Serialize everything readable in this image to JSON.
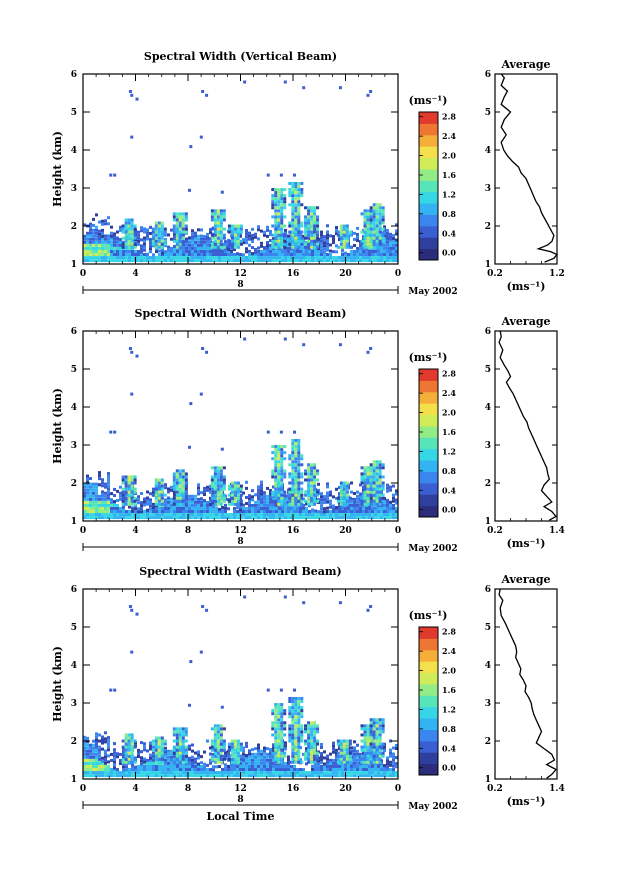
{
  "colors": {
    "scale": [
      "#2b2d7a",
      "#2e3f9e",
      "#3a5fd3",
      "#3a86ee",
      "#34b3f2",
      "#35d6e6",
      "#57e5b8",
      "#93ec86",
      "#cfec58",
      "#f3e04a",
      "#f6ae3b",
      "#ef7533",
      "#e03a2f"
    ],
    "line": "#000000"
  },
  "chart_data": [
    {
      "id": "vertical",
      "type": "heatmap",
      "title": "Spectral Width (Vertical Beam)",
      "ylabel": "Height (km)",
      "x_ticks": [
        "0",
        "4",
        "8",
        "12",
        "16",
        "20",
        "0"
      ],
      "y_ticks": [
        "1",
        "2",
        "3",
        "4",
        "5",
        "6"
      ],
      "xlim": [
        0,
        24
      ],
      "ylim": [
        1,
        6
      ],
      "date_label": "8",
      "month_label": "May 2002",
      "colorbar": {
        "unit": "(ms⁻¹)",
        "tick_labels": [
          "2.8",
          "2.4",
          "2.0",
          "1.6",
          "1.2",
          "0.8",
          "0.4",
          "0.0"
        ],
        "range": [
          0,
          3.0
        ]
      },
      "average": {
        "title": "Average",
        "xlabel": "(ms⁻¹)",
        "x_ticks": [
          "0.2",
          "1.2"
        ],
        "xlim": [
          0.2,
          1.2
        ],
        "ylim": [
          1,
          6
        ],
        "y_ticks": [
          "1",
          "2",
          "3",
          "4",
          "5",
          "6"
        ],
        "profile": [
          [
            0.3,
            6.0
          ],
          [
            0.35,
            5.9
          ],
          [
            0.3,
            5.7
          ],
          [
            0.4,
            5.55
          ],
          [
            0.35,
            5.4
          ],
          [
            0.3,
            5.2
          ],
          [
            0.45,
            5.0
          ],
          [
            0.35,
            4.8
          ],
          [
            0.3,
            4.6
          ],
          [
            0.38,
            4.4
          ],
          [
            0.3,
            4.2
          ],
          [
            0.34,
            4.0
          ],
          [
            0.4,
            3.85
          ],
          [
            0.48,
            3.7
          ],
          [
            0.58,
            3.55
          ],
          [
            0.62,
            3.4
          ],
          [
            0.7,
            3.25
          ],
          [
            0.74,
            3.1
          ],
          [
            0.78,
            2.95
          ],
          [
            0.82,
            2.8
          ],
          [
            0.86,
            2.65
          ],
          [
            0.92,
            2.5
          ],
          [
            0.95,
            2.35
          ],
          [
            1.0,
            2.2
          ],
          [
            1.05,
            2.05
          ],
          [
            1.1,
            1.9
          ],
          [
            1.15,
            1.75
          ],
          [
            1.12,
            1.6
          ],
          [
            1.05,
            1.5
          ],
          [
            0.9,
            1.4
          ],
          [
            1.1,
            1.32
          ],
          [
            1.2,
            1.25
          ],
          [
            1.15,
            1.15
          ],
          [
            1.0,
            1.05
          ]
        ]
      }
    },
    {
      "id": "northward",
      "type": "heatmap",
      "title": "Spectral Width (Northward Beam)",
      "ylabel": "Height (km)",
      "x_ticks": [
        "0",
        "4",
        "8",
        "12",
        "16",
        "20",
        "0"
      ],
      "y_ticks": [
        "1",
        "2",
        "3",
        "4",
        "5",
        "6"
      ],
      "xlim": [
        0,
        24
      ],
      "ylim": [
        1,
        6
      ],
      "date_label": "8",
      "month_label": "May 2002",
      "colorbar": {
        "unit": "(ms⁻¹)",
        "tick_labels": [
          "2.8",
          "2.4",
          "2.0",
          "1.6",
          "1.2",
          "0.8",
          "0.4",
          "0.0"
        ],
        "range": [
          0,
          3.0
        ]
      },
      "average": {
        "title": "Average",
        "xlabel": "(ms⁻¹)",
        "x_ticks": [
          "0.2",
          "1.4"
        ],
        "xlim": [
          0.2,
          1.4
        ],
        "ylim": [
          1,
          6
        ],
        "y_ticks": [
          "1",
          "2",
          "3",
          "4",
          "5",
          "6"
        ],
        "profile": [
          [
            0.3,
            6.0
          ],
          [
            0.32,
            5.85
          ],
          [
            0.28,
            5.7
          ],
          [
            0.35,
            5.5
          ],
          [
            0.3,
            5.3
          ],
          [
            0.38,
            5.1
          ],
          [
            0.45,
            4.95
          ],
          [
            0.5,
            4.8
          ],
          [
            0.42,
            4.65
          ],
          [
            0.48,
            4.5
          ],
          [
            0.55,
            4.35
          ],
          [
            0.6,
            4.2
          ],
          [
            0.65,
            4.05
          ],
          [
            0.7,
            3.9
          ],
          [
            0.75,
            3.75
          ],
          [
            0.82,
            3.6
          ],
          [
            0.85,
            3.45
          ],
          [
            0.9,
            3.3
          ],
          [
            0.95,
            3.15
          ],
          [
            1.0,
            3.0
          ],
          [
            1.05,
            2.85
          ],
          [
            1.1,
            2.7
          ],
          [
            1.15,
            2.55
          ],
          [
            1.2,
            2.4
          ],
          [
            1.22,
            2.25
          ],
          [
            1.25,
            2.1
          ],
          [
            1.15,
            1.95
          ],
          [
            1.1,
            1.8
          ],
          [
            1.2,
            1.65
          ],
          [
            1.3,
            1.5
          ],
          [
            1.15,
            1.38
          ],
          [
            1.3,
            1.25
          ],
          [
            1.38,
            1.12
          ],
          [
            1.25,
            1.02
          ]
        ]
      }
    },
    {
      "id": "eastward",
      "type": "heatmap",
      "title": "Spectral Width (Eastward Beam)",
      "ylabel": "Height (km)",
      "x_ticks": [
        "0",
        "4",
        "8",
        "12",
        "16",
        "20",
        "0"
      ],
      "y_ticks": [
        "1",
        "2",
        "3",
        "4",
        "5",
        "6"
      ],
      "xlim": [
        0,
        24
      ],
      "ylim": [
        1,
        6
      ],
      "date_label": "8",
      "month_label": "May 2002",
      "xlabel": "Local Time",
      "colorbar": {
        "unit": "(ms⁻¹)",
        "tick_labels": [
          "2.8",
          "2.4",
          "2.0",
          "1.6",
          "1.2",
          "0.8",
          "0.4",
          "0.0"
        ],
        "range": [
          0,
          3.0
        ]
      },
      "average": {
        "title": "Average",
        "xlabel": "(ms⁻¹)",
        "x_ticks": [
          "0.2",
          "1.4"
        ],
        "xlim": [
          0.2,
          1.4
        ],
        "ylim": [
          1,
          6
        ],
        "y_ticks": [
          "1",
          "2",
          "3",
          "4",
          "5",
          "6"
        ],
        "profile": [
          [
            0.3,
            6.0
          ],
          [
            0.28,
            5.85
          ],
          [
            0.35,
            5.7
          ],
          [
            0.3,
            5.5
          ],
          [
            0.32,
            5.3
          ],
          [
            0.4,
            5.1
          ],
          [
            0.45,
            4.95
          ],
          [
            0.5,
            4.8
          ],
          [
            0.55,
            4.65
          ],
          [
            0.6,
            4.5
          ],
          [
            0.62,
            4.35
          ],
          [
            0.6,
            4.2
          ],
          [
            0.65,
            4.05
          ],
          [
            0.7,
            3.9
          ],
          [
            0.68,
            3.75
          ],
          [
            0.75,
            3.6
          ],
          [
            0.8,
            3.45
          ],
          [
            0.78,
            3.3
          ],
          [
            0.85,
            3.15
          ],
          [
            0.9,
            3.0
          ],
          [
            0.92,
            2.85
          ],
          [
            0.95,
            2.7
          ],
          [
            1.0,
            2.55
          ],
          [
            1.05,
            2.4
          ],
          [
            1.1,
            2.25
          ],
          [
            1.05,
            2.1
          ],
          [
            1.0,
            1.95
          ],
          [
            1.15,
            1.8
          ],
          [
            1.3,
            1.65
          ],
          [
            1.35,
            1.5
          ],
          [
            1.2,
            1.38
          ],
          [
            1.38,
            1.25
          ],
          [
            1.3,
            1.12
          ],
          [
            1.2,
            1.02
          ]
        ]
      }
    }
  ]
}
